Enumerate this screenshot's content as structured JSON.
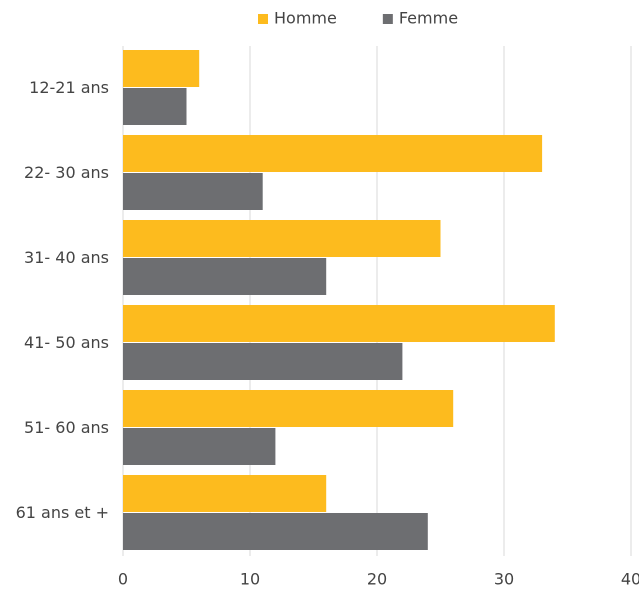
{
  "chart_data": {
    "type": "hbar",
    "categories": [
      "12-21 ans",
      "22- 30 ans",
      "31- 40 ans",
      "41- 50 ans",
      "51- 60 ans",
      "61 ans et +"
    ],
    "series": [
      {
        "name": "Homme",
        "color": "#fdbb1e",
        "values": [
          6,
          33,
          25,
          34,
          26,
          16
        ]
      },
      {
        "name": "Femme",
        "color": "#6d6e71",
        "values": [
          5,
          11,
          16,
          22,
          12,
          24
        ]
      }
    ],
    "xlim": [
      0,
      40
    ],
    "xticks": [
      0,
      10,
      20,
      30,
      40
    ],
    "grid": true,
    "legend": "top"
  }
}
